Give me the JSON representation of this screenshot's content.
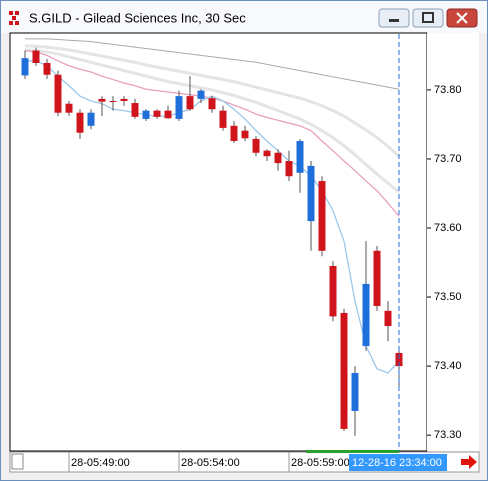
{
  "window_title": "S.GILD - Gilead Sciences Inc, 30 Sec",
  "chart_data": {
    "type": "candlestick",
    "categories": [
      null,
      null,
      null,
      null,
      "28-05:49:00",
      null,
      null,
      null,
      null,
      null,
      null,
      null,
      null,
      null,
      "28-05:54:00",
      null,
      null,
      null,
      null,
      null,
      null,
      null,
      null,
      null,
      "28-05:59:00",
      null,
      null,
      null,
      null,
      null,
      null,
      null,
      null,
      null,
      null
    ],
    "open": [
      73.821,
      73.857,
      73.839,
      73.822,
      73.78,
      73.767,
      73.748,
      73.787,
      73.784,
      73.787,
      73.781,
      73.758,
      73.77,
      73.77,
      73.758,
      73.791,
      73.787,
      73.788,
      73.77,
      73.748,
      73.741,
      73.729,
      73.712,
      73.709,
      73.697,
      73.68,
      73.61,
      73.668,
      73.545,
      73.477,
      73.335,
      73.429,
      73.567,
      73.48,
      73.419
    ],
    "high": [
      73.857,
      73.861,
      73.845,
      73.828,
      73.784,
      73.772,
      73.772,
      73.791,
      73.791,
      73.791,
      73.787,
      73.772,
      73.772,
      73.777,
      73.799,
      73.82,
      73.801,
      73.791,
      73.777,
      73.755,
      73.748,
      73.733,
      73.714,
      73.714,
      73.712,
      73.729,
      73.697,
      73.675,
      73.552,
      73.483,
      73.4,
      73.581,
      73.574,
      73.494,
      73.429
    ],
    "low": [
      73.816,
      73.835,
      73.816,
      73.762,
      73.762,
      73.729,
      73.743,
      73.762,
      73.77,
      73.777,
      73.758,
      73.755,
      73.758,
      73.758,
      73.755,
      73.77,
      73.781,
      73.767,
      73.741,
      73.723,
      73.726,
      73.704,
      73.697,
      73.683,
      73.668,
      73.651,
      73.567,
      73.559,
      73.465,
      73.306,
      73.299,
      73.422,
      73.48,
      73.436,
      73.367
    ],
    "close": [
      73.846,
      73.839,
      73.822,
      73.767,
      73.767,
      73.738,
      73.767,
      73.783,
      73.783,
      73.784,
      73.761,
      73.77,
      73.761,
      73.759,
      73.791,
      73.772,
      73.799,
      73.772,
      73.745,
      73.726,
      73.73,
      73.709,
      73.704,
      73.694,
      73.675,
      73.726,
      73.69,
      73.567,
      73.472,
      73.309,
      73.39,
      73.519,
      73.487,
      73.458,
      73.4
    ],
    "up_color": "#1f6fdb",
    "down_color": "#d0141c",
    "series": [
      {
        "color": "#a9a9a9",
        "width": 1,
        "values": [
          73.874,
          73.874,
          73.874,
          73.873,
          73.872,
          73.871,
          73.87,
          73.868,
          73.866,
          73.864,
          73.862,
          73.86,
          73.858,
          73.856,
          73.854,
          73.852,
          73.85,
          73.848,
          73.846,
          73.844,
          73.842,
          73.84,
          73.837,
          73.834,
          73.831,
          73.828,
          73.825,
          73.822,
          73.819,
          73.816,
          73.813,
          73.81,
          73.807,
          73.804,
          73.801
        ]
      },
      {
        "color": "#e4e4e4",
        "width": 3,
        "values": [
          73.864,
          73.863,
          73.862,
          73.86,
          73.858,
          73.855,
          73.852,
          73.849,
          73.846,
          73.843,
          73.84,
          73.836,
          73.833,
          73.83,
          73.827,
          73.824,
          73.821,
          73.818,
          73.815,
          73.812,
          73.808,
          73.804,
          73.8,
          73.796,
          73.792,
          73.788,
          73.783,
          73.777,
          73.77,
          73.762,
          73.752,
          73.742,
          73.731,
          73.718,
          73.704
        ]
      },
      {
        "color": "#e4e4e4",
        "width": 3,
        "values": [
          73.858,
          73.857,
          73.855,
          73.852,
          73.848,
          73.844,
          73.84,
          73.836,
          73.832,
          73.828,
          73.824,
          73.82,
          73.816,
          73.812,
          73.809,
          73.806,
          73.803,
          73.8,
          73.796,
          73.792,
          73.787,
          73.782,
          73.776,
          73.77,
          73.764,
          73.758,
          73.75,
          73.741,
          73.731,
          73.719,
          73.706,
          73.692,
          73.678,
          73.665,
          73.652
        ]
      },
      {
        "color": "#e8a0bd",
        "width": 1.3,
        "values": [
          73.857,
          73.855,
          73.85,
          73.842,
          73.835,
          73.83,
          73.826,
          73.82,
          73.815,
          73.81,
          73.806,
          73.801,
          73.799,
          73.797,
          73.795,
          73.793,
          73.791,
          73.788,
          73.784,
          73.778,
          73.772,
          73.765,
          73.76,
          73.756,
          73.752,
          73.748,
          73.741,
          73.726,
          73.712,
          73.697,
          73.683,
          73.668,
          73.654,
          73.636,
          73.617
        ]
      },
      {
        "color": "#9cc8ea",
        "width": 1.3,
        "values": [
          73.842,
          73.842,
          73.835,
          73.82,
          73.806,
          73.791,
          73.784,
          73.78,
          73.772,
          73.77,
          73.767,
          73.764,
          73.762,
          73.762,
          73.767,
          73.772,
          73.784,
          73.791,
          73.784,
          73.772,
          73.758,
          73.741,
          73.726,
          73.712,
          73.697,
          73.69,
          73.675,
          73.654,
          73.625,
          73.581,
          73.494,
          73.429,
          73.396,
          73.39,
          73.407
        ]
      }
    ],
    "ylim": [
      73.277,
      73.881
    ],
    "yticks": [
      {
        "value": 73.3,
        "label": "73.30"
      },
      {
        "value": 73.4,
        "label": "73.40"
      },
      {
        "value": 73.5,
        "label": "73.50"
      },
      {
        "value": 73.6,
        "label": "73.60"
      },
      {
        "value": 73.7,
        "label": "73.70"
      },
      {
        "value": 73.8,
        "label": "73.80"
      }
    ],
    "cursor_label": "12-28-16 23:34:00"
  }
}
